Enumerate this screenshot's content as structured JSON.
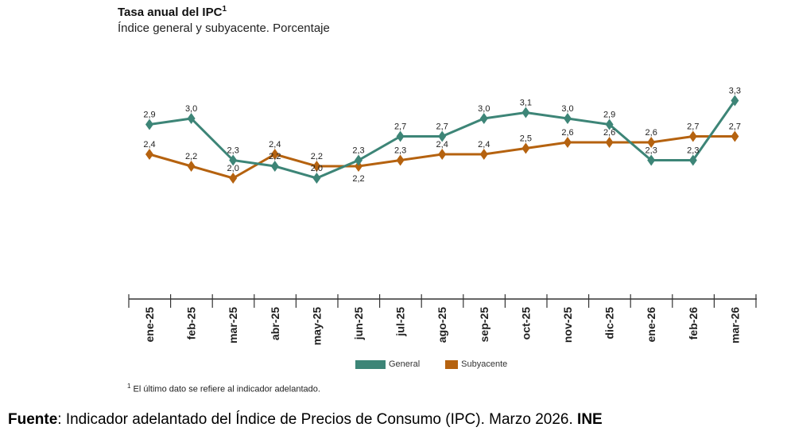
{
  "chart_data": {
    "type": "line",
    "title": "Tasa anual del IPC",
    "title_superscript": "1",
    "subtitle": "Índice general y subyacente. Porcentaje",
    "categories": [
      "ene-25",
      "feb-25",
      "mar-25",
      "abr-25",
      "may-25",
      "jun-25",
      "jul-25",
      "ago-25",
      "sep-25",
      "oct-25",
      "nov-25",
      "dic-25",
      "ene-26",
      "feb-26",
      "mar-26"
    ],
    "series": [
      {
        "name": "General",
        "color": "#3d8577",
        "values": [
          2.9,
          3.0,
          2.3,
          2.2,
          2.0,
          2.3,
          2.7,
          2.7,
          3.0,
          3.1,
          3.0,
          2.9,
          2.3,
          2.3,
          3.3
        ]
      },
      {
        "name": "Subyacente",
        "color": "#b5620f",
        "values": [
          2.4,
          2.2,
          2.0,
          2.4,
          2.2,
          2.2,
          2.3,
          2.4,
          2.4,
          2.5,
          2.6,
          2.6,
          2.6,
          2.7,
          2.7
        ]
      }
    ],
    "data_labels": true,
    "grid": false,
    "legend": "bottom",
    "marker": "diamond"
  },
  "footnote": {
    "mark": "1",
    "text": "El último dato se refiere al indicador adelantado."
  },
  "source": {
    "label": "Fuente",
    "text": ": Indicador adelantado del Índice de Precios de Consumo (IPC). Marzo 2026. ",
    "org": "INE"
  }
}
